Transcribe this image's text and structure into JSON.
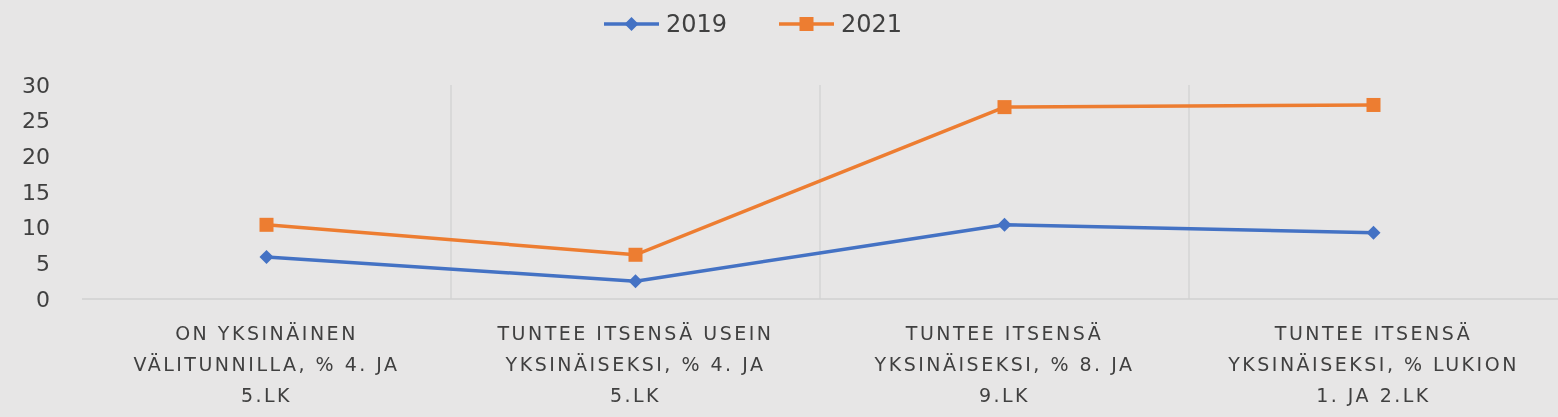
{
  "chart_data": {
    "type": "line",
    "categories": [
      "ON YKSINÄINEN VÄLITUNNILLA, % 4. JA 5.LK",
      "TUNTEE ITSENSÄ USEIN YKSINÄISEKSI, % 4. JA 5.LK",
      "TUNTEE ITSENSÄ YKSINÄISEKSI, % 8. JA 9.LK",
      "TUNTEE ITSENSÄ YKSINÄISEKSI, % LUKION 1. JA 2.LK"
    ],
    "series": [
      {
        "name": "2019",
        "color": "#4472c4",
        "marker": "diamond",
        "values": [
          5.9,
          2.5,
          10.4,
          9.3
        ]
      },
      {
        "name": "2021",
        "color": "#ed7d31",
        "marker": "square",
        "values": [
          10.4,
          6.2,
          26.9,
          27.2
        ]
      }
    ],
    "ylim": [
      0,
      30
    ],
    "yticks": [
      0,
      5,
      10,
      15,
      20,
      25,
      30
    ],
    "grid": "x",
    "legend": "top"
  }
}
